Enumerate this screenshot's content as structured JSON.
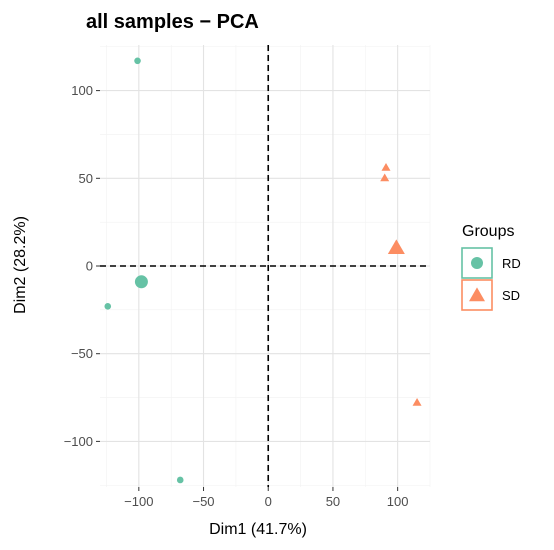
{
  "chart_data": {
    "type": "scatter",
    "title": "all samples − PCA",
    "xlabel": "Dim1 (41.7%)",
    "ylabel": "Dim2 (28.2%)",
    "xlim": [
      -130,
      125
    ],
    "ylim": [
      -126,
      126
    ],
    "xticks": [
      -100,
      -50,
      0,
      50,
      100
    ],
    "xtick_labels": [
      "−100",
      "−50",
      "0",
      "50",
      "100"
    ],
    "yticks": [
      -100,
      -50,
      0,
      50,
      100
    ],
    "ytick_labels": [
      "−100",
      "−50",
      "0",
      "50",
      "100"
    ],
    "grid": true,
    "reference_lines": {
      "x": 0,
      "y": 0,
      "style": "dashed"
    },
    "legend": {
      "title": "Groups",
      "position": "right"
    },
    "series": [
      {
        "name": "RD",
        "color": "#66c2a5",
        "marker": "circle",
        "points": [
          {
            "x": -101,
            "y": 117
          },
          {
            "x": -124,
            "y": -23
          },
          {
            "x": -68,
            "y": -122
          }
        ],
        "centroid": {
          "x": -98,
          "y": -9
        }
      },
      {
        "name": "SD",
        "color": "#fc8d62",
        "marker": "triangle",
        "points": [
          {
            "x": 91,
            "y": 56
          },
          {
            "x": 90,
            "y": 50
          },
          {
            "x": 115,
            "y": -78
          }
        ],
        "centroid": {
          "x": 99,
          "y": 10
        }
      }
    ]
  }
}
